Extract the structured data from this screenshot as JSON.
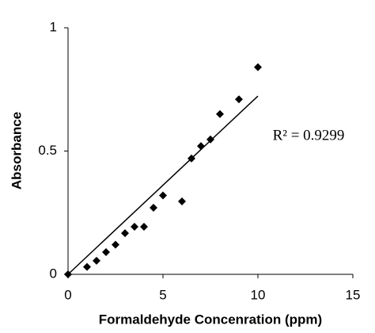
{
  "chart_data": {
    "type": "scatter",
    "x_label": "Formaldehyde Concenration (ppm)",
    "y_label": "Absorbance",
    "annotation": "R² = 0.9299",
    "series": [
      {
        "color": "#000000",
        "x": [
          0,
          1,
          1.5,
          2,
          2.5,
          3,
          3.5,
          4,
          4.5,
          5,
          6,
          6.5,
          7,
          7.5,
          8,
          9,
          10
        ],
        "values": [
          0,
          0.03,
          0.055,
          0.09,
          0.12,
          0.167,
          0.193,
          0.193,
          0.27,
          0.32,
          0.296,
          0.47,
          0.52,
          0.547,
          0.65,
          0.71,
          0.84
        ]
      }
    ],
    "trendline": {
      "x": [
        0,
        10
      ],
      "y": [
        0,
        0.723
      ]
    },
    "xlim": [
      0,
      15
    ],
    "xticks": [
      0,
      5,
      10,
      15
    ],
    "ylim": [
      0,
      1
    ],
    "yticks": [
      0,
      0.5,
      1
    ],
    "grid": false
  }
}
